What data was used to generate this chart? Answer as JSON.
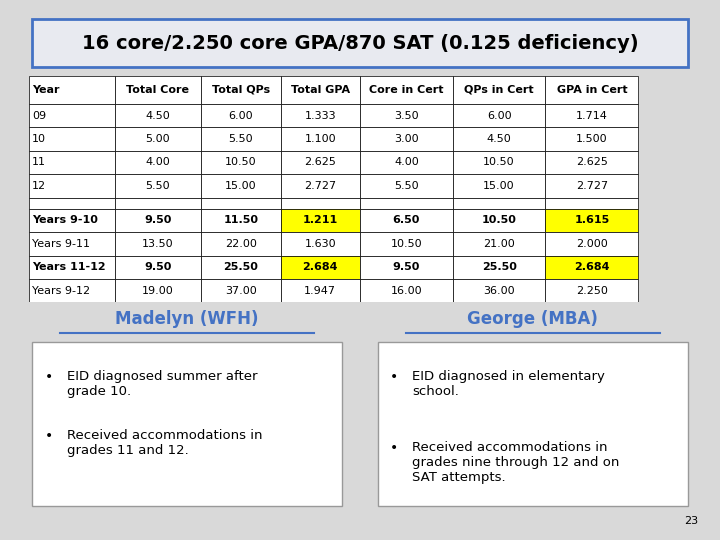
{
  "title": "16 core/2.250 core GPA/870 SAT (0.125 deficiency)",
  "bg_color": "#d9d9d9",
  "table_headers": [
    "Year",
    "Total Core",
    "Total QPs",
    "Total GPA",
    "Core in Cert",
    "QPs in Cert",
    "GPA in Cert"
  ],
  "table_rows": [
    [
      "09",
      "4.50",
      "6.00",
      "1.333",
      "3.50",
      "6.00",
      "1.714"
    ],
    [
      "10",
      "5.00",
      "5.50",
      "1.100",
      "3.00",
      "4.50",
      "1.500"
    ],
    [
      "11",
      "4.00",
      "10.50",
      "2.625",
      "4.00",
      "10.50",
      "2.625"
    ],
    [
      "12",
      "5.50",
      "15.00",
      "2.727",
      "5.50",
      "15.00",
      "2.727"
    ],
    [
      "",
      "",
      "",
      "",
      "",
      "",
      ""
    ],
    [
      "Years 9-10",
      "9.50",
      "11.50",
      "1.211",
      "6.50",
      "10.50",
      "1.615"
    ],
    [
      "Years 9-11",
      "13.50",
      "22.00",
      "1.630",
      "10.50",
      "21.00",
      "2.000"
    ],
    [
      "Years 11-12",
      "9.50",
      "25.50",
      "2.684",
      "9.50",
      "25.50",
      "2.684"
    ],
    [
      "Years 9-12",
      "19.00",
      "37.00",
      "1.947",
      "16.00",
      "36.00",
      "2.250"
    ]
  ],
  "yellow_rows": [
    5,
    7
  ],
  "yellow_cols": [
    3,
    6
  ],
  "bold_rows": [
    5,
    7
  ],
  "madelyn_title": "Madelyn (WFH)",
  "george_title": "George (MBA)",
  "madelyn_bullets": [
    "EID diagnosed summer after\ngrade 10.",
    "Received accommodations in\ngrades 11 and 12."
  ],
  "george_bullets": [
    "EID diagnosed in elementary\nschool.",
    "Received accommodations in\ngrades nine through 12 and on\nSAT attempts."
  ],
  "page_number": "23",
  "title_bg": "#e8eaf0",
  "title_border": "#4472c4",
  "header_bg": "#ffffff",
  "row_bg": "#ffffff",
  "yellow_bg": "#ffff00",
  "grid_color": "#000000",
  "text_color": "#000000",
  "header_font_size": 8,
  "cell_font_size": 8,
  "name_color": "#4472c4"
}
